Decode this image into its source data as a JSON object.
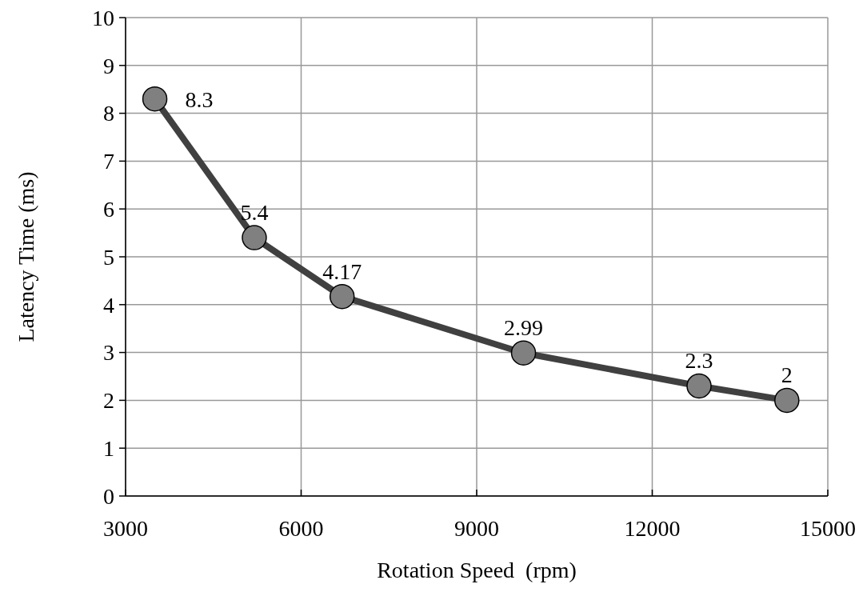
{
  "chart_data": {
    "type": "line",
    "xlabel": "Rotation Speed  (rpm)",
    "ylabel": "Latency Time (ms)",
    "x": [
      3500,
      5200,
      6700,
      9800,
      12800,
      14300
    ],
    "series": [
      {
        "color": "#404040",
        "values": [
          8.3,
          5.4,
          4.17,
          2.99,
          2.3,
          2
        ]
      }
    ],
    "xlim": [
      3000,
      15000
    ],
    "xticks": [
      3000,
      6000,
      9000,
      12000,
      15000
    ],
    "ylim": [
      0,
      10
    ],
    "yticks": [
      0,
      1,
      2,
      3,
      4,
      5,
      6,
      7,
      8,
      9,
      10
    ],
    "grid": true,
    "marker": "circle",
    "line_style": "solid",
    "data_labels": true
  }
}
